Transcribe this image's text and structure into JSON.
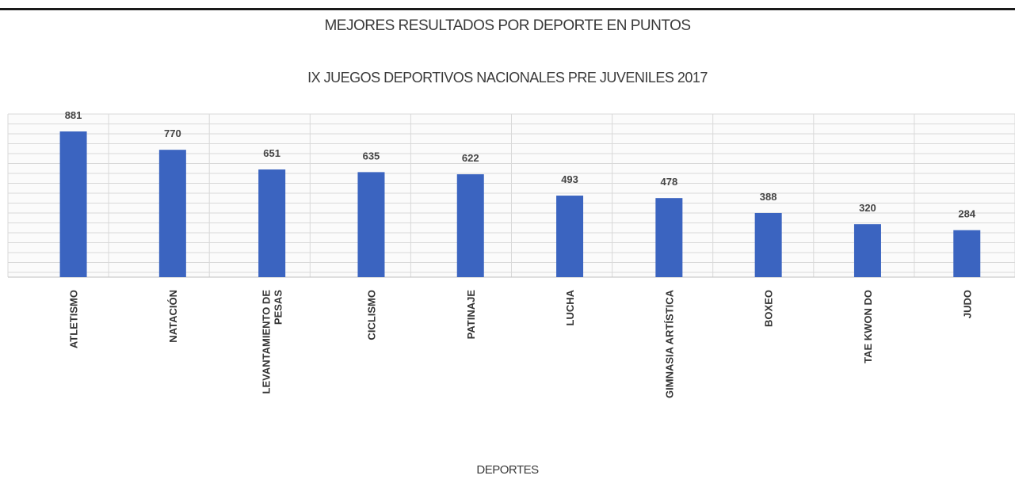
{
  "chart_data": {
    "type": "bar",
    "title": "MEJORES RESULTADOS POR DEPORTE EN PUNTOS",
    "subtitle": "IX JUEGOS DEPORTIVOS NACIONALES PRE JUVENILES 2017",
    "xlabel": "DEPORTES",
    "ylabel": "",
    "ylim": [
      0,
      1000
    ],
    "grid": true,
    "categories": [
      [
        "ATLETISMO"
      ],
      [
        "NATACIÓN"
      ],
      [
        "LEVANTAMIENTO DE",
        "PESAS"
      ],
      [
        "CICLISMO"
      ],
      [
        "PATINAJE"
      ],
      [
        "LUCHA"
      ],
      [
        "GIMNASIA ARTÍSTICA"
      ],
      [
        "BOXEO"
      ],
      [
        "TAE KWON DO"
      ],
      [
        "JUDO"
      ]
    ],
    "values": [
      881,
      770,
      651,
      635,
      622,
      493,
      478,
      388,
      320,
      284
    ],
    "colors": {
      "bar": "#3b64c0",
      "grid": "#d9d9d9"
    }
  }
}
